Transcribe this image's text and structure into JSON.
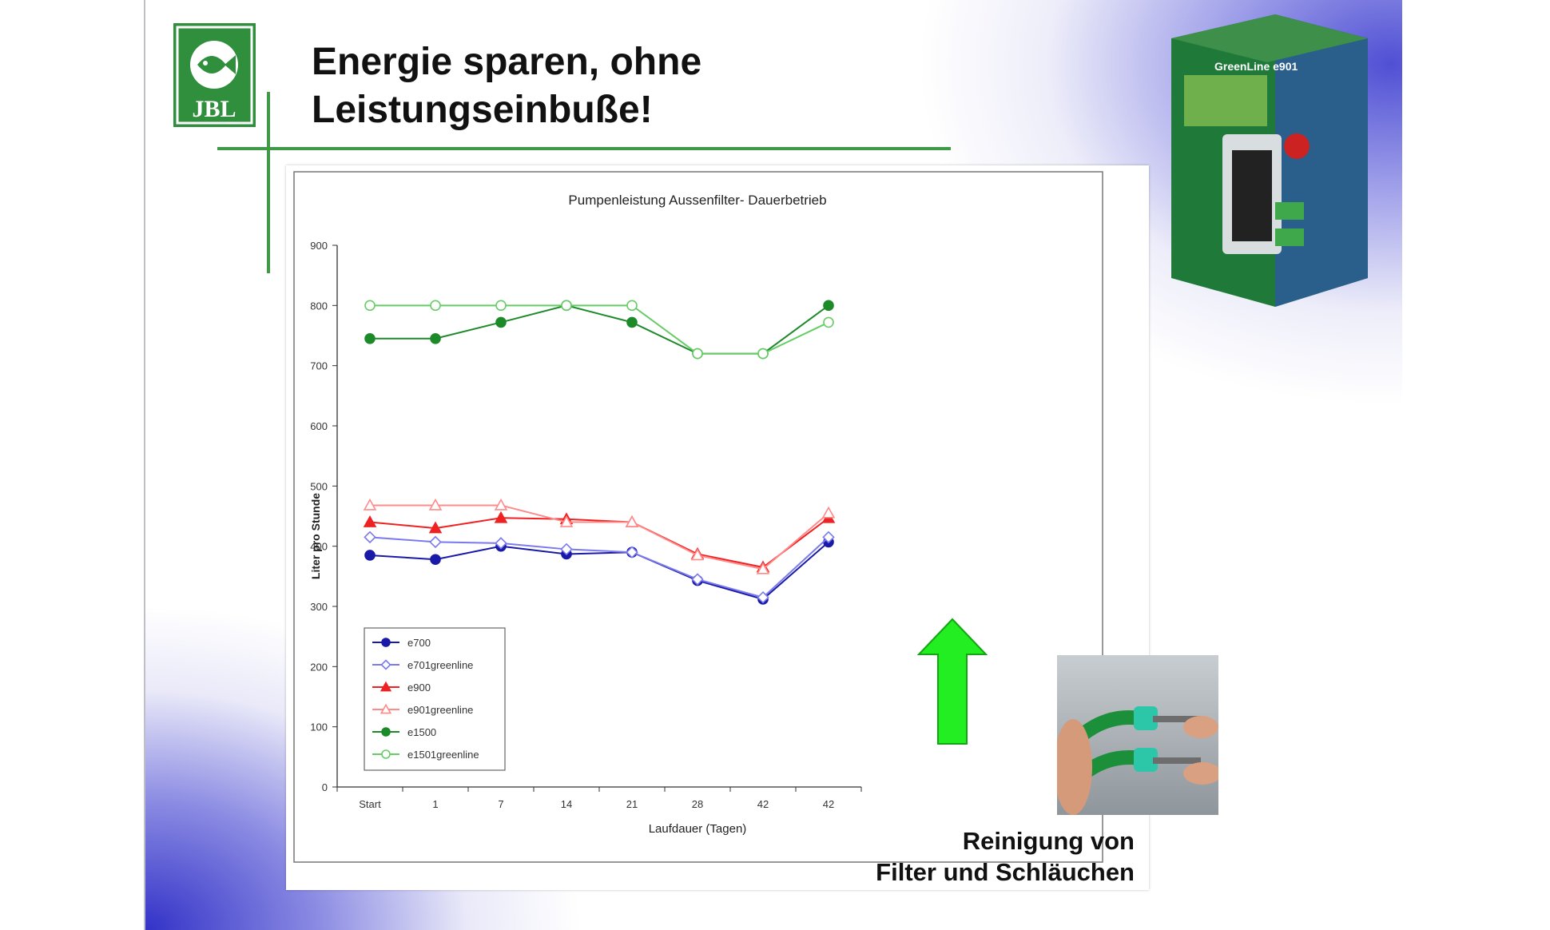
{
  "slide": {
    "title_line1": "Energie sparen, ohne",
    "title_line2": "Leistungseinbuße!",
    "logo_text": "JBL",
    "caption_line1": "Reinigung von",
    "caption_line2": "Filter und Schläuchen",
    "product_box_label": "GreenLine e901",
    "colors": {
      "brand_green": "#3f9a48",
      "slide_blue": "#3c3cc8",
      "arrow_green": "#22ee22"
    }
  },
  "chart_data": {
    "type": "line",
    "title": "Pumpenleistung Aussenfilter- Dauerbetrieb",
    "xlabel": "Laufdauer (Tagen)",
    "ylabel": "Liter pro Stunde",
    "categories": [
      "Start",
      "1",
      "7",
      "14",
      "21",
      "28",
      "42",
      "42"
    ],
    "ylim": [
      0,
      900
    ],
    "yticks": [
      0,
      100,
      200,
      300,
      400,
      500,
      600,
      700,
      800,
      900
    ],
    "grid": false,
    "legend_position": "bottom-left",
    "series": [
      {
        "name": "e700",
        "color": "#1a1aa8",
        "marker": "circle",
        "filled": true,
        "values": [
          385,
          378,
          400,
          387,
          390,
          343,
          312,
          407
        ]
      },
      {
        "name": "e701greenline",
        "color": "#7a7aee",
        "marker": "diamond",
        "filled": false,
        "values": [
          415,
          407,
          405,
          395,
          390,
          345,
          315,
          415
        ]
      },
      {
        "name": "e900",
        "color": "#ee2222",
        "marker": "triangle",
        "filled": true,
        "values": [
          440,
          430,
          447,
          445,
          440,
          387,
          365,
          447
        ]
      },
      {
        "name": "e901greenline",
        "color": "#ff8a8a",
        "marker": "triangle",
        "filled": false,
        "values": [
          468,
          468,
          468,
          440,
          440,
          385,
          362,
          455
        ]
      },
      {
        "name": "e1500",
        "color": "#1d8a2a",
        "marker": "circle",
        "filled": true,
        "values": [
          745,
          745,
          772,
          800,
          772,
          720,
          720,
          800
        ]
      },
      {
        "name": "e1501greenline",
        "color": "#66cc66",
        "marker": "circle",
        "filled": false,
        "values": [
          800,
          800,
          800,
          800,
          800,
          720,
          720,
          772
        ]
      }
    ]
  }
}
